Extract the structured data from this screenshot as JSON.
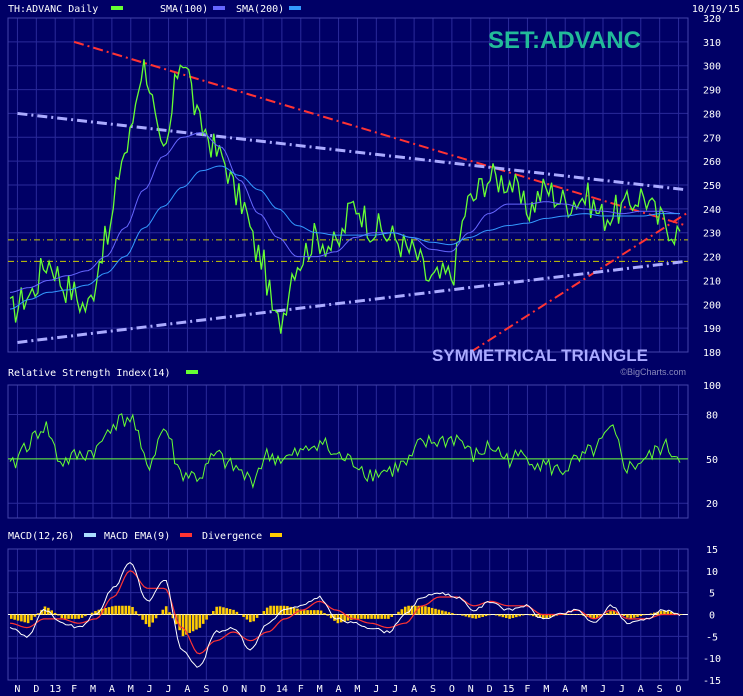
{
  "header": {
    "symbol_label": "TH:ADVANC Daily",
    "sma100_label": "SMA(100)",
    "sma200_label": "SMA(200)",
    "date": "10/19/15",
    "watermark": "SET:ADVANC",
    "pattern_label": "SYMMETRICAL TRIANGLE",
    "credit": "©BigCharts.com"
  },
  "colors": {
    "background": "#000066",
    "grid": "#2a2a9a",
    "price": "#66ff33",
    "sma100": "#6666ff",
    "sma200": "#3399ff",
    "trend_red": "#ff3333",
    "trend_lavender": "#aaaaff",
    "support_yellow": "#cccc00",
    "macd": "#ffffff",
    "macd_ema": "#ff3333",
    "divergence": "#ffcc00",
    "watermark": "#22bb99",
    "pattern_label": "#aaaaff",
    "text": "#ffffff"
  },
  "chart_data": [
    {
      "type": "line",
      "panel": "price",
      "title": "TH:ADVANC Daily",
      "ylim": [
        180,
        320
      ],
      "yticks": [
        180,
        190,
        200,
        210,
        220,
        230,
        240,
        250,
        260,
        270,
        280,
        290,
        300,
        310,
        320
      ],
      "x": [
        "N",
        "D",
        "13",
        "F",
        "M",
        "A",
        "M",
        "J",
        "J",
        "A",
        "S",
        "O",
        "N",
        "D",
        "14",
        "F",
        "M",
        "A",
        "M",
        "J",
        "J",
        "A",
        "S",
        "O",
        "N",
        "D",
        "15",
        "F",
        "M",
        "A",
        "M",
        "J",
        "J",
        "A",
        "S",
        "O"
      ],
      "series": [
        {
          "name": "TH:ADVANC Daily",
          "values": [
            197,
            204,
            218,
            207,
            199,
            226,
            264,
            300,
            262,
            304,
            274,
            262,
            244,
            221,
            192,
            218,
            228,
            224,
            242,
            232,
            228,
            222,
            210,
            212,
            243,
            253,
            252,
            240,
            248,
            243,
            245,
            237,
            240,
            246,
            235,
            230
          ]
        },
        {
          "name": "SMA(100)",
          "values": [
            205,
            207,
            210,
            212,
            214,
            220,
            232,
            248,
            262,
            270,
            272,
            266,
            252,
            238,
            228,
            220,
            220,
            222,
            228,
            230,
            230,
            228,
            223,
            222,
            230,
            238,
            242,
            242,
            243,
            242,
            240,
            239,
            238,
            239,
            239,
            238
          ]
        },
        {
          "name": "SMA(200)",
          "values": [
            198,
            202,
            205,
            206,
            208,
            213,
            220,
            232,
            241,
            249,
            256,
            258,
            254,
            248,
            240,
            233,
            230,
            229,
            229,
            229,
            230,
            228,
            226,
            225,
            228,
            231,
            233,
            234,
            236,
            237,
            238,
            237,
            237,
            237,
            238,
            238
          ]
        }
      ],
      "trendlines": [
        {
          "color": "red",
          "from": [
            "Feb 2013",
            310
          ],
          "to": [
            "Oct 2015",
            233
          ]
        },
        {
          "color": "red",
          "from": [
            "Nov 2014",
            180
          ],
          "to": [
            "Oct 2015",
            238
          ]
        },
        {
          "color": "lavender",
          "from": [
            "Nov 2012",
            280
          ],
          "to": [
            "Oct 2015",
            248
          ]
        },
        {
          "color": "lavender",
          "from": [
            "Nov 2012",
            184
          ],
          "to": [
            "Oct 2015",
            218
          ]
        }
      ],
      "levels": [
        227,
        218
      ]
    },
    {
      "type": "line",
      "panel": "rsi",
      "title": "Relative Strength Index(14)",
      "ylim": [
        10,
        100
      ],
      "yticks": [
        20,
        50,
        80,
        100
      ],
      "series": [
        {
          "name": "Relative Strength Index(14)",
          "values": [
            44,
            60,
            72,
            48,
            52,
            56,
            74,
            78,
            46,
            70,
            40,
            38,
            52,
            44,
            36,
            52,
            50,
            54,
            62,
            52,
            48,
            40,
            42,
            46,
            60,
            62,
            64,
            52,
            58,
            50,
            52,
            46,
            42,
            48,
            56,
            68,
            44,
            50,
            58,
            52
          ]
        }
      ]
    },
    {
      "type": "line",
      "panel": "macd",
      "title": "MACD(12,26)",
      "ylim": [
        -15,
        15
      ],
      "yticks": [
        -15,
        -10,
        -5,
        0,
        5,
        10,
        15
      ],
      "series": [
        {
          "name": "MACD(12,26)",
          "values": [
            -3,
            -5,
            1,
            -2,
            -3,
            0,
            6,
            12,
            3,
            8,
            -8,
            -12,
            -4,
            -3,
            -8,
            -2,
            1,
            2,
            4,
            -1,
            -2,
            -3,
            -4,
            0,
            4,
            5,
            4,
            1,
            3,
            1,
            2,
            -1,
            0,
            1,
            -2,
            2,
            -2,
            -1,
            1,
            0
          ]
        },
        {
          "name": "MACD EMA(9)",
          "values": [
            -2,
            -3,
            -1,
            -1,
            -2,
            -1,
            4,
            10,
            6,
            6,
            -3,
            -9,
            -6,
            -4,
            -6,
            -4,
            -1,
            1,
            3,
            1,
            -1,
            -2,
            -3,
            -2,
            2,
            4,
            4,
            2,
            3,
            2,
            2,
            0,
            0,
            1,
            -1,
            1,
            -1,
            -1,
            0,
            0
          ]
        },
        {
          "name": "Divergence",
          "values": [
            -1,
            -2,
            2,
            -1,
            -1,
            1,
            2,
            2,
            -3,
            2,
            -5,
            -3,
            2,
            1,
            -2,
            2,
            2,
            1,
            1,
            -2,
            -1,
            -1,
            -1,
            2,
            2,
            1,
            0,
            -1,
            0,
            -1,
            0,
            -1,
            0,
            0,
            -1,
            1,
            -1,
            0,
            1,
            0
          ]
        }
      ]
    }
  ],
  "rsi_label": "Relative Strength Index(14)",
  "macd_labels": {
    "macd": "MACD(12,26)",
    "ema": "MACD EMA(9)",
    "divergence": "Divergence"
  },
  "x_axis": {
    "labels": [
      "N",
      "D",
      "13",
      "F",
      "M",
      "A",
      "M",
      "J",
      "J",
      "A",
      "S",
      "O",
      "N",
      "D",
      "14",
      "F",
      "M",
      "A",
      "M",
      "J",
      "J",
      "A",
      "S",
      "O",
      "N",
      "D",
      "15",
      "F",
      "M",
      "A",
      "M",
      "J",
      "J",
      "A",
      "S",
      "O"
    ]
  }
}
